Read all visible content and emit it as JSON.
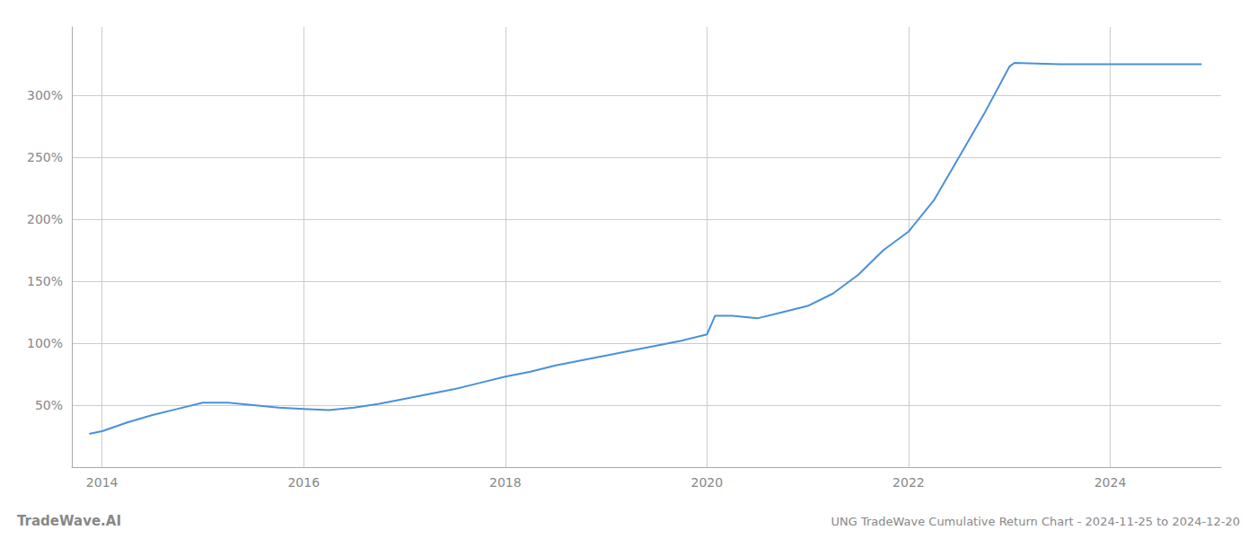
{
  "chart_data": {
    "type": "line",
    "title": "UNG TradeWave Cumulative Return Chart - 2024-11-25 to 2024-12-20",
    "watermark": "TradeWave.AI",
    "color": "#4a90d9",
    "grid": true,
    "x": [
      2013.88,
      2014.0,
      2014.25,
      2014.5,
      2014.75,
      2015.0,
      2015.25,
      2015.5,
      2015.75,
      2016.0,
      2016.25,
      2016.5,
      2016.75,
      2017.0,
      2017.25,
      2017.5,
      2017.75,
      2018.0,
      2018.25,
      2018.5,
      2018.75,
      2019.0,
      2019.25,
      2019.5,
      2019.75,
      2020.0,
      2020.08,
      2020.25,
      2020.5,
      2020.75,
      2021.0,
      2021.25,
      2021.5,
      2021.75,
      2022.0,
      2022.25,
      2022.5,
      2022.75,
      2023.0,
      2023.05,
      2023.5,
      2024.0,
      2024.5,
      2024.9
    ],
    "values": [
      27,
      29,
      36,
      42,
      47,
      52,
      52,
      50,
      48,
      47,
      46,
      48,
      51,
      55,
      59,
      63,
      68,
      73,
      77,
      82,
      86,
      90,
      94,
      98,
      102,
      107,
      122,
      122,
      120,
      125,
      130,
      140,
      155,
      175,
      190,
      215,
      250,
      285,
      323,
      326,
      325,
      325,
      325,
      325
    ],
    "xlim": [
      2013.7,
      2025.1
    ],
    "xticks": [
      2014,
      2016,
      2018,
      2020,
      2022,
      2024
    ],
    "ylim": [
      0,
      355
    ],
    "yticks": [
      {
        "value": 50,
        "label": "50%"
      },
      {
        "value": 100,
        "label": "100%"
      },
      {
        "value": 150,
        "label": "150%"
      },
      {
        "value": 200,
        "label": "200%"
      },
      {
        "value": 250,
        "label": "250%"
      },
      {
        "value": 300,
        "label": "300%"
      }
    ]
  }
}
